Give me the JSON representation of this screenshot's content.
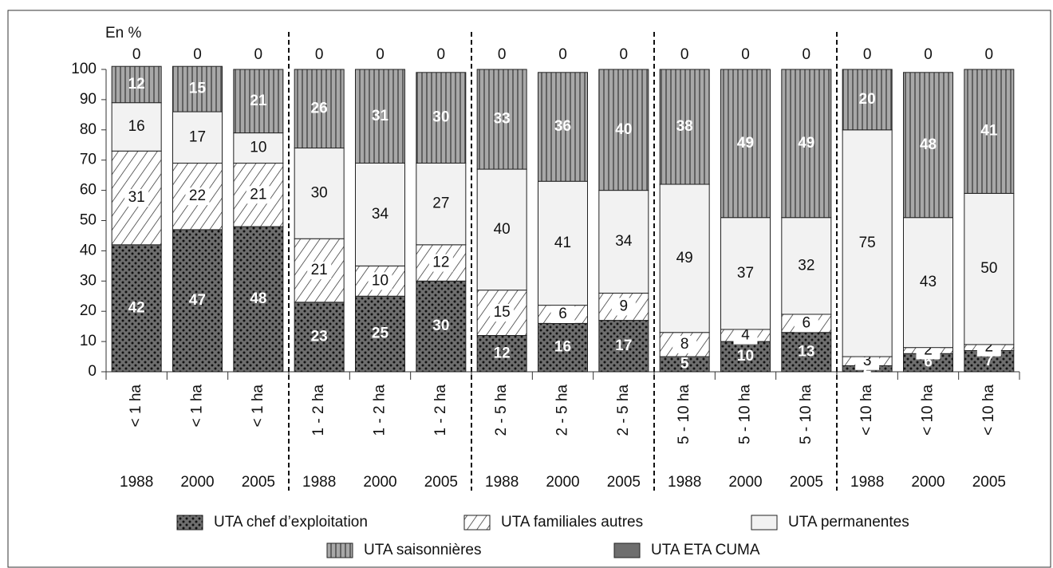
{
  "chart_data": {
    "type": "stacked_bar",
    "unit_label": "En %",
    "categories": [
      "< 1 ha",
      "< 1 ha",
      "< 1 ha",
      "1 - 2 ha",
      "1 - 2 ha",
      "1 - 2 ha",
      "2 - 5 ha",
      "2 - 5 ha",
      "2 - 5 ha",
      "5 - 10 ha",
      "5 - 10 ha",
      "5 - 10 ha",
      "< 10 ha",
      "< 10 ha",
      "< 10 ha"
    ],
    "years": [
      "1988",
      "2000",
      "2005",
      "1988",
      "2000",
      "2005",
      "1988",
      "2000",
      "2005",
      "1988",
      "2000",
      "2005",
      "1988",
      "2000",
      "2005"
    ],
    "series": [
      {
        "name": "UTA chef d’exploitation",
        "color": "#6e6e6e",
        "pattern": "dots",
        "values": [
          42,
          47,
          48,
          23,
          25,
          30,
          12,
          16,
          17,
          5,
          10,
          13,
          2,
          6,
          7
        ]
      },
      {
        "name": "UTA familiales autres",
        "color": "#ffffff",
        "pattern": "hatch",
        "values": [
          31,
          22,
          21,
          21,
          10,
          12,
          15,
          6,
          9,
          8,
          4,
          6,
          3,
          2,
          2
        ]
      },
      {
        "name": "UTA permanentes",
        "color": "#f2f2f2",
        "pattern": "solid",
        "values": [
          16,
          17,
          10,
          30,
          34,
          27,
          40,
          41,
          34,
          49,
          37,
          32,
          75,
          43,
          50
        ]
      },
      {
        "name": "UTA saisonnières",
        "color": "#9a9a9a",
        "pattern": "stripes",
        "values": [
          12,
          15,
          21,
          26,
          31,
          30,
          33,
          36,
          40,
          38,
          49,
          49,
          20,
          48,
          41
        ]
      },
      {
        "name": "UTA ETA CUMA",
        "color": "#6e6e6e",
        "pattern": "solid",
        "values": [
          0,
          0,
          0,
          0,
          0,
          0,
          0,
          0,
          0,
          0,
          0,
          0,
          0,
          0,
          0
        ]
      }
    ],
    "ylim": [
      0,
      100
    ],
    "yticks": [
      0,
      10,
      20,
      30,
      40,
      50,
      60,
      70,
      80,
      90,
      100
    ],
    "group_size": 3
  }
}
